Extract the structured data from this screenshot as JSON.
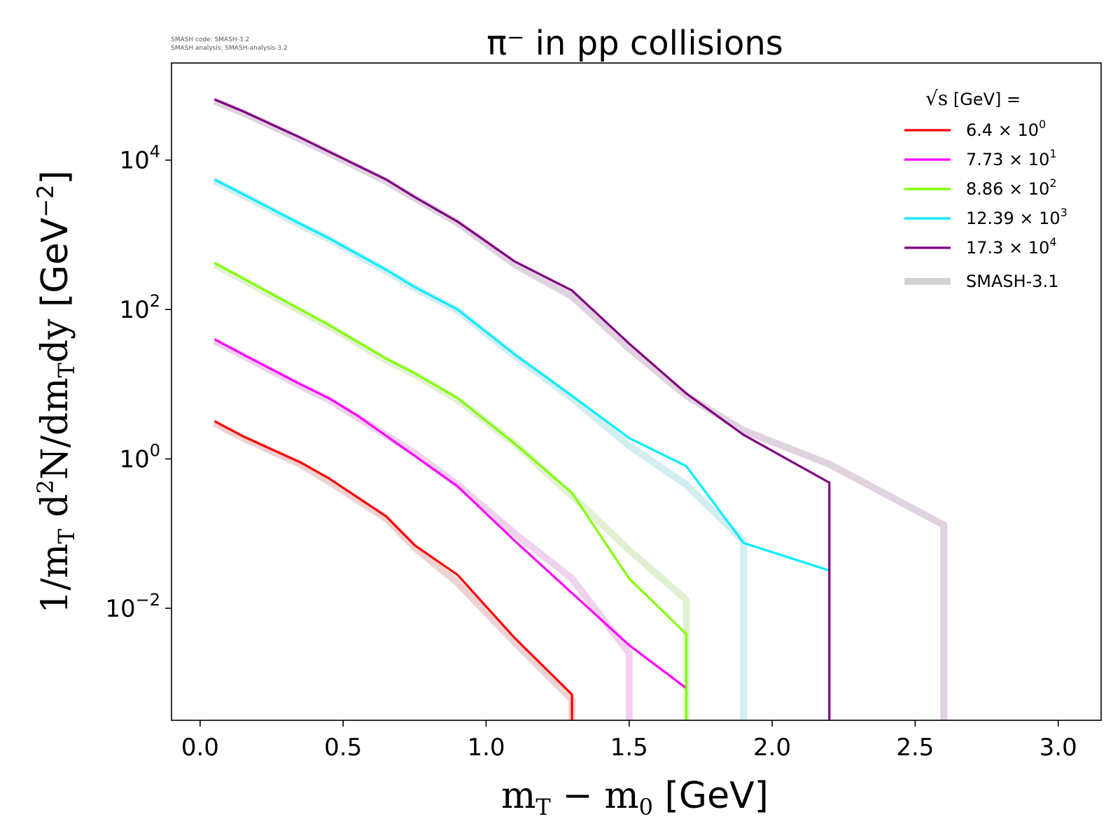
{
  "version_info": {
    "line1": "SMASH code:      SMASH-3.2",
    "line2": "SMASH analysis: SMASH-analysis-3.2"
  },
  "chart_data": {
    "type": "line",
    "title": "π⁻ in pp collisions",
    "xlabel_math": "m",
    "xlabel_sub1": "T",
    "xlabel_minus": " − m",
    "xlabel_sub2": "0",
    "xlabel_unit": " [GeV]",
    "ylabel_prefix": "1/m",
    "ylabel_sub1": "T",
    "ylabel_d": " d",
    "ylabel_sup": "2",
    "ylabel_mid": "N/dm",
    "ylabel_sub2": "T",
    "ylabel_dy": "dy",
    "ylabel_unit": " [GeV",
    "ylabel_unit_sup": "−2",
    "ylabel_close": "]",
    "xlim": [
      -0.1,
      3.15
    ],
    "ylim_log10": [
      -3.5,
      5.3
    ],
    "y_scale": "log",
    "x_ticks": [
      0.0,
      0.5,
      1.0,
      1.5,
      2.0,
      2.5,
      3.0
    ],
    "x_tick_labels": [
      "0.0",
      "0.5",
      "1.0",
      "1.5",
      "2.0",
      "2.5",
      "3.0"
    ],
    "y_ticks_log10": [
      -2,
      0,
      2,
      4
    ],
    "y_tick_bases": [
      "10",
      "10",
      "10",
      "10"
    ],
    "y_tick_exps": [
      "−2",
      "0",
      "2",
      "4"
    ],
    "legend": {
      "title_sqrt": "√s",
      "title_rest": " [GeV] =",
      "placement": "top-right",
      "entries": [
        {
          "mant": "6.4",
          "exp": "0",
          "color": "#ff0000"
        },
        {
          "mant": "7.73",
          "exp": "1",
          "color": "#ff00ff"
        },
        {
          "mant": "8.86",
          "exp": "2",
          "color": "#80ff00"
        },
        {
          "mant": "12.39",
          "exp": "3",
          "color": "#00eeff"
        },
        {
          "mant": "17.3",
          "exp": "4",
          "color": "#800080"
        }
      ],
      "reference_label": "SMASH-3.1",
      "reference_color": "#d3d3d3"
    },
    "series": [
      {
        "name": "6.4 × 10^0",
        "color": "#ff0000",
        "x": [
          0.05,
          0.15,
          0.35,
          0.45,
          0.65,
          0.75,
          0.9,
          1.1,
          1.3,
          1.3
        ],
        "y": [
          3.2,
          2.0,
          0.9,
          0.55,
          0.17,
          0.07,
          0.028,
          0.004,
          0.0007,
          1e-05
        ]
      },
      {
        "name": "7.73 × 10^1",
        "color": "#ff00ff",
        "x": [
          0.05,
          0.15,
          0.35,
          0.45,
          0.55,
          0.75,
          0.9,
          1.1,
          1.3,
          1.5,
          1.7
        ],
        "y": [
          40,
          25,
          10,
          6.5,
          3.8,
          1.1,
          0.43,
          0.08,
          0.016,
          0.0032,
          0.00085
        ]
      },
      {
        "name": "8.86 × 10^2",
        "color": "#80ff00",
        "x": [
          0.05,
          0.15,
          0.35,
          0.45,
          0.65,
          0.75,
          0.9,
          1.1,
          1.3,
          1.5,
          1.7,
          1.7
        ],
        "y": [
          420,
          260,
          100,
          62,
          22,
          14,
          6.5,
          1.6,
          0.35,
          0.025,
          0.0045,
          1e-05
        ]
      },
      {
        "name": "12.39 × 10^3",
        "color": "#00eeff",
        "x": [
          0.05,
          0.15,
          0.35,
          0.45,
          0.65,
          0.75,
          0.9,
          1.1,
          1.3,
          1.5,
          1.7,
          1.9,
          2.2
        ],
        "y": [
          5500,
          3500,
          1400,
          900,
          340,
          200,
          100,
          25,
          7,
          1.9,
          0.8,
          0.075,
          0.032
        ]
      },
      {
        "name": "17.3 × 10^4",
        "color": "#800080",
        "x": [
          0.05,
          0.15,
          0.35,
          0.45,
          0.65,
          0.75,
          0.9,
          1.1,
          1.3,
          1.5,
          1.7,
          1.9,
          2.2,
          2.2
        ],
        "y": [
          65000,
          45000,
          20000,
          13000,
          5500,
          3200,
          1500,
          440,
          180,
          35,
          7.5,
          2.1,
          0.48,
          1e-05
        ]
      }
    ],
    "reference_series": [
      {
        "color": "#ff0000",
        "x": [
          0.05,
          0.15,
          0.35,
          0.45,
          0.65,
          0.75,
          0.9,
          1.1,
          1.3,
          1.3
        ],
        "y": [
          3.0,
          1.9,
          0.85,
          0.5,
          0.16,
          0.065,
          0.022,
          0.0035,
          0.0006,
          1e-05
        ]
      },
      {
        "color": "#ff00ff",
        "x": [
          0.05,
          0.15,
          0.35,
          0.45,
          0.55,
          0.75,
          0.9,
          1.1,
          1.3,
          1.5,
          1.5
        ],
        "y": [
          38,
          24,
          9.5,
          6.2,
          3.6,
          1.2,
          0.45,
          0.1,
          0.025,
          0.0025,
          1e-05
        ]
      },
      {
        "color": "#80ff00",
        "x": [
          0.05,
          0.15,
          0.35,
          0.45,
          0.65,
          0.75,
          0.9,
          1.1,
          1.3,
          1.5,
          1.7,
          1.7
        ],
        "y": [
          400,
          250,
          95,
          60,
          21,
          13.5,
          6.2,
          1.6,
          0.32,
          0.06,
          0.013,
          1e-05
        ]
      },
      {
        "color": "#00eeff",
        "x": [
          0.05,
          0.15,
          0.35,
          0.45,
          0.65,
          0.75,
          0.9,
          1.1,
          1.3,
          1.5,
          1.7,
          1.9,
          1.9
        ],
        "y": [
          5300,
          3400,
          1350,
          880,
          330,
          195,
          98,
          24,
          6.5,
          1.5,
          0.45,
          0.08,
          1e-05
        ]
      },
      {
        "color": "#800080",
        "x": [
          0.05,
          0.15,
          0.35,
          0.45,
          0.65,
          0.75,
          0.9,
          1.1,
          1.3,
          1.5,
          1.7,
          1.9,
          2.2,
          2.6,
          2.6
        ],
        "y": [
          62000,
          43000,
          19000,
          12500,
          5200,
          3100,
          1450,
          400,
          150,
          30,
          7,
          2.4,
          0.85,
          0.13,
          1e-05
        ]
      }
    ]
  }
}
